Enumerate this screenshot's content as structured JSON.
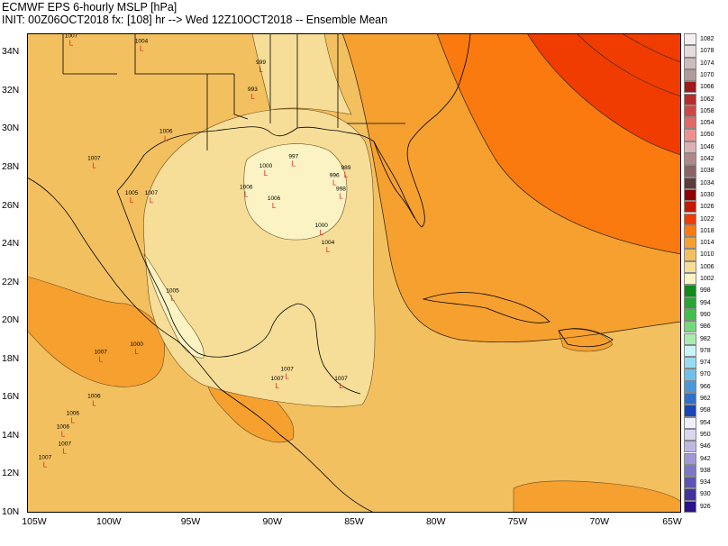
{
  "title_line1": "ECMWF EPS 6-hourly MSLP [hPa]",
  "title_line2": "INIT: 00Z06OCT2018 fx: [108] hr --> Wed 12Z10OCT2018 -- Ensemble Mean",
  "lat_labels": [
    "34N",
    "32N",
    "30N",
    "28N",
    "26N",
    "24N",
    "22N",
    "20N",
    "18N",
    "16N",
    "14N",
    "12N",
    "10N"
  ],
  "lon_labels": [
    "105W",
    "100W",
    "95W",
    "90W",
    "85W",
    "80W",
    "75W",
    "70W",
    "65W"
  ],
  "legend": [
    {
      "value": "1082",
      "color": "#f4eeee"
    },
    {
      "value": "1078",
      "color": "#e5dcdc"
    },
    {
      "value": "1074",
      "color": "#cdbcbc"
    },
    {
      "value": "1070",
      "color": "#b09a9a"
    },
    {
      "value": "1066",
      "color": "#a01818"
    },
    {
      "value": "1062",
      "color": "#bb2b2b"
    },
    {
      "value": "1058",
      "color": "#cf4848"
    },
    {
      "value": "1054",
      "color": "#e06868"
    },
    {
      "value": "1050",
      "color": "#ee9090"
    },
    {
      "value": "1046",
      "color": "#dcb0b0"
    },
    {
      "value": "1042",
      "color": "#b08888"
    },
    {
      "value": "1038",
      "color": "#8a6464"
    },
    {
      "value": "1034",
      "color": "#5c3c3c"
    },
    {
      "value": "1030",
      "color": "#8c0000"
    },
    {
      "value": "1026",
      "color": "#c41a00"
    },
    {
      "value": "1022",
      "color": "#f03c00"
    },
    {
      "value": "1018",
      "color": "#fb7a10"
    },
    {
      "value": "1014",
      "color": "#f6a030"
    },
    {
      "value": "1010",
      "color": "#f3c060"
    },
    {
      "value": "1006",
      "color": "#f7de98"
    },
    {
      "value": "1002",
      "color": "#fbf3c4"
    },
    {
      "value": "998",
      "color": "#0f8c1a"
    },
    {
      "value": "994",
      "color": "#27a535"
    },
    {
      "value": "990",
      "color": "#41bf4a"
    },
    {
      "value": "986",
      "color": "#74d87a"
    },
    {
      "value": "982",
      "color": "#a8ecae"
    },
    {
      "value": "978",
      "color": "#c8f4f8"
    },
    {
      "value": "974",
      "color": "#98dcf2"
    },
    {
      "value": "970",
      "color": "#6ec0ea"
    },
    {
      "value": "966",
      "color": "#4a98dc"
    },
    {
      "value": "962",
      "color": "#3070cc"
    },
    {
      "value": "958",
      "color": "#1848b8"
    },
    {
      "value": "954",
      "color": "#f0f0fa"
    },
    {
      "value": "950",
      "color": "#d8d6f0"
    },
    {
      "value": "946",
      "color": "#bcb8e4"
    },
    {
      "value": "942",
      "color": "#9e98d6"
    },
    {
      "value": "938",
      "color": "#7e76c6"
    },
    {
      "value": "934",
      "color": "#5e54b4"
    },
    {
      "value": "930",
      "color": "#4232a0"
    },
    {
      "value": "926",
      "color": "#2a1288"
    }
  ],
  "map_colors": {
    "c1002": "#fbf3c4",
    "c1006": "#f7de98",
    "c1010": "#f3c060",
    "c1014": "#f6a030",
    "c1018": "#fb7a10",
    "c1022": "#f03c00",
    "land_line": "#000000"
  },
  "lows": [
    {
      "value": "1007",
      "lon": -102.3,
      "lat": 34.8
    },
    {
      "value": "1004",
      "lon": -98.0,
      "lat": 34.5
    },
    {
      "value": "999",
      "lon": -90.7,
      "lat": 33.4
    },
    {
      "value": "993",
      "lon": -91.2,
      "lat": 32.0
    },
    {
      "value": "1006",
      "lon": -96.5,
      "lat": 29.8
    },
    {
      "value": "1007",
      "lon": -100.9,
      "lat": 28.4
    },
    {
      "value": "1005",
      "lon": -98.6,
      "lat": 26.6
    },
    {
      "value": "1007",
      "lon": -97.4,
      "lat": 26.6
    },
    {
      "value": "1006",
      "lon": -91.6,
      "lat": 26.9
    },
    {
      "value": "1000",
      "lon": -90.4,
      "lat": 28.0
    },
    {
      "value": "997",
      "lon": -88.7,
      "lat": 28.5
    },
    {
      "value": "989",
      "lon": -85.5,
      "lat": 27.9
    },
    {
      "value": "996",
      "lon": -86.2,
      "lat": 27.5
    },
    {
      "value": "998",
      "lon": -85.8,
      "lat": 26.8
    },
    {
      "value": "1006",
      "lon": -89.9,
      "lat": 26.3
    },
    {
      "value": "1000",
      "lon": -87.0,
      "lat": 24.9
    },
    {
      "value": "1004",
      "lon": -86.6,
      "lat": 24.0
    },
    {
      "value": "1005",
      "lon": -96.1,
      "lat": 21.5
    },
    {
      "value": "1000",
      "lon": -98.3,
      "lat": 18.7
    },
    {
      "value": "1007",
      "lon": -100.5,
      "lat": 18.3
    },
    {
      "value": "1007",
      "lon": -89.1,
      "lat": 17.4
    },
    {
      "value": "1007",
      "lon": -89.7,
      "lat": 16.9
    },
    {
      "value": "1007",
      "lon": -85.8,
      "lat": 16.9
    },
    {
      "value": "1006",
      "lon": -100.9,
      "lat": 16.0
    },
    {
      "value": "1006",
      "lon": -102.2,
      "lat": 15.1
    },
    {
      "value": "1006",
      "lon": -102.8,
      "lat": 14.4
    },
    {
      "value": "1007",
      "lon": -102.7,
      "lat": 13.5
    },
    {
      "value": "1007",
      "lon": -103.9,
      "lat": 12.8
    }
  ]
}
